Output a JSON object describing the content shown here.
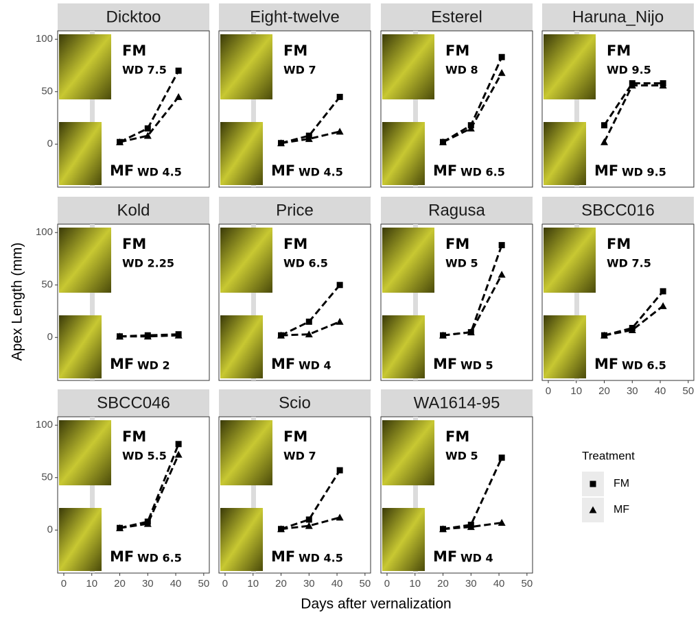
{
  "y_label": "Apex Length (mm)",
  "x_label": "Days after vernalization",
  "legend_title": "Treatment",
  "chart_data": [
    {
      "type": "line",
      "title": "Dicktoo",
      "fm_label": "FM",
      "fm_wd": "WD 7.5",
      "mf_label": "MF",
      "mf_wd": "WD 4.5",
      "xlim": [
        -2.2,
        52
      ],
      "ylim": [
        -41,
        108
      ],
      "yticks": [
        0,
        50,
        100
      ],
      "series": [
        {
          "name": "FM",
          "color": "#000000",
          "x": [
            20,
            30,
            41
          ],
          "values": [
            2,
            15,
            70
          ]
        },
        {
          "name": "MF",
          "color": "#000000",
          "x": [
            20,
            30,
            41
          ],
          "values": [
            2,
            8,
            45
          ]
        }
      ]
    },
    {
      "type": "line",
      "title": "Eight-twelve",
      "fm_label": "FM",
      "fm_wd": "WD 7",
      "mf_label": "MF",
      "mf_wd": "WD 4.5",
      "xlim": [
        -2.2,
        52
      ],
      "ylim": [
        -41,
        108
      ],
      "series": [
        {
          "name": "FM",
          "color": "#000000",
          "x": [
            20,
            30,
            41
          ],
          "values": [
            1,
            8,
            45
          ]
        },
        {
          "name": "MF",
          "color": "#000000",
          "x": [
            20,
            30,
            41
          ],
          "values": [
            1,
            5,
            12
          ]
        }
      ]
    },
    {
      "type": "line",
      "title": "Esterel",
      "fm_label": "FM",
      "fm_wd": "WD 8",
      "mf_label": "MF",
      "mf_wd": "WD 6.5",
      "xlim": [
        -2.2,
        52
      ],
      "ylim": [
        -41,
        108
      ],
      "series": [
        {
          "name": "FM",
          "color": "#000000",
          "x": [
            20,
            30,
            41
          ],
          "values": [
            2,
            18,
            83
          ]
        },
        {
          "name": "MF",
          "color": "#000000",
          "x": [
            20,
            30,
            41
          ],
          "values": [
            2,
            15,
            68
          ]
        }
      ]
    },
    {
      "type": "line",
      "title": "Haruna_Nijo",
      "fm_label": "FM",
      "fm_wd": "WD 9.5",
      "mf_label": "MF",
      "mf_wd": "WD 9.5",
      "xlim": [
        -2.2,
        52
      ],
      "ylim": [
        -41,
        108
      ],
      "series": [
        {
          "name": "FM",
          "color": "#000000",
          "x": [
            20,
            30,
            41
          ],
          "values": [
            18,
            58,
            58
          ]
        },
        {
          "name": "MF",
          "color": "#000000",
          "x": [
            20,
            30,
            41
          ],
          "values": [
            2,
            56,
            56
          ]
        }
      ]
    },
    {
      "type": "line",
      "title": "Kold",
      "fm_label": "FM",
      "fm_wd": "WD 2.25",
      "mf_label": "MF",
      "mf_wd": "WD 2",
      "xlim": [
        -2.2,
        52
      ],
      "ylim": [
        -41,
        108
      ],
      "yticks": [
        0,
        50,
        100
      ],
      "series": [
        {
          "name": "FM",
          "color": "#000000",
          "x": [
            20,
            30,
            41
          ],
          "values": [
            1,
            2,
            3
          ]
        },
        {
          "name": "MF",
          "color": "#000000",
          "x": [
            20,
            30,
            41
          ],
          "values": [
            1,
            1,
            2
          ]
        }
      ]
    },
    {
      "type": "line",
      "title": "Price",
      "fm_label": "FM",
      "fm_wd": "WD 6.5",
      "mf_label": "MF",
      "mf_wd": "WD 4",
      "xlim": [
        -2.2,
        52
      ],
      "ylim": [
        -41,
        108
      ],
      "series": [
        {
          "name": "FM",
          "color": "#000000",
          "x": [
            20,
            30,
            41
          ],
          "values": [
            2,
            15,
            50
          ]
        },
        {
          "name": "MF",
          "color": "#000000",
          "x": [
            20,
            30,
            41
          ],
          "values": [
            2,
            3,
            15
          ]
        }
      ]
    },
    {
      "type": "line",
      "title": "Ragusa",
      "fm_label": "FM",
      "fm_wd": "WD 5",
      "mf_label": "MF",
      "mf_wd": "WD 5",
      "xlim": [
        -2.2,
        52
      ],
      "ylim": [
        -41,
        108
      ],
      "series": [
        {
          "name": "FM",
          "color": "#000000",
          "x": [
            20,
            30,
            41
          ],
          "values": [
            2,
            5,
            88
          ]
        },
        {
          "name": "MF",
          "color": "#000000",
          "x": [
            20,
            30,
            41
          ],
          "values": [
            2,
            5,
            60
          ]
        }
      ]
    },
    {
      "type": "line",
      "title": "SBCC016",
      "fm_label": "FM",
      "fm_wd": "WD 7.5",
      "mf_label": "MF",
      "mf_wd": "WD 6.5",
      "xlim": [
        -2.2,
        52
      ],
      "ylim": [
        -41,
        108
      ],
      "xticks": [
        0,
        10,
        20,
        30,
        40,
        50
      ],
      "series": [
        {
          "name": "FM",
          "color": "#000000",
          "x": [
            20,
            30,
            41
          ],
          "values": [
            2,
            9,
            44
          ]
        },
        {
          "name": "MF",
          "color": "#000000",
          "x": [
            20,
            30,
            41
          ],
          "values": [
            2,
            7,
            30
          ]
        }
      ]
    },
    {
      "type": "line",
      "title": "SBCC046",
      "fm_label": "FM",
      "fm_wd": "WD 5.5",
      "mf_label": "MF",
      "mf_wd": "WD 6.5",
      "xlim": [
        -2.2,
        52
      ],
      "ylim": [
        -41,
        108
      ],
      "yticks": [
        0,
        50,
        100
      ],
      "xticks": [
        0,
        10,
        20,
        30,
        40,
        50
      ],
      "series": [
        {
          "name": "FM",
          "color": "#000000",
          "x": [
            20,
            30,
            41
          ],
          "values": [
            2,
            8,
            82
          ]
        },
        {
          "name": "MF",
          "color": "#000000",
          "x": [
            20,
            30,
            41
          ],
          "values": [
            2,
            6,
            72
          ]
        }
      ]
    },
    {
      "type": "line",
      "title": "Scio",
      "fm_label": "FM",
      "fm_wd": "WD 7",
      "mf_label": "MF",
      "mf_wd": "WD 4.5",
      "xlim": [
        -2.2,
        52
      ],
      "ylim": [
        -41,
        108
      ],
      "xticks": [
        0,
        10,
        20,
        30,
        40,
        50
      ],
      "series": [
        {
          "name": "FM",
          "color": "#000000",
          "x": [
            20,
            30,
            41
          ],
          "values": [
            1,
            10,
            57
          ]
        },
        {
          "name": "MF",
          "color": "#000000",
          "x": [
            20,
            30,
            41
          ],
          "values": [
            1,
            4,
            12
          ]
        }
      ]
    },
    {
      "type": "line",
      "title": "WA1614-95",
      "fm_label": "FM",
      "fm_wd": "WD 5",
      "mf_label": "MF",
      "mf_wd": "WD 4",
      "xlim": [
        -2.2,
        52
      ],
      "ylim": [
        -41,
        108
      ],
      "xticks": [
        0,
        10,
        20,
        30,
        40,
        50
      ],
      "series": [
        {
          "name": "FM",
          "color": "#000000",
          "x": [
            20,
            30,
            41
          ],
          "values": [
            1,
            5,
            69
          ]
        },
        {
          "name": "MF",
          "color": "#000000",
          "x": [
            20,
            30,
            41
          ],
          "values": [
            1,
            3,
            7
          ]
        }
      ]
    }
  ]
}
